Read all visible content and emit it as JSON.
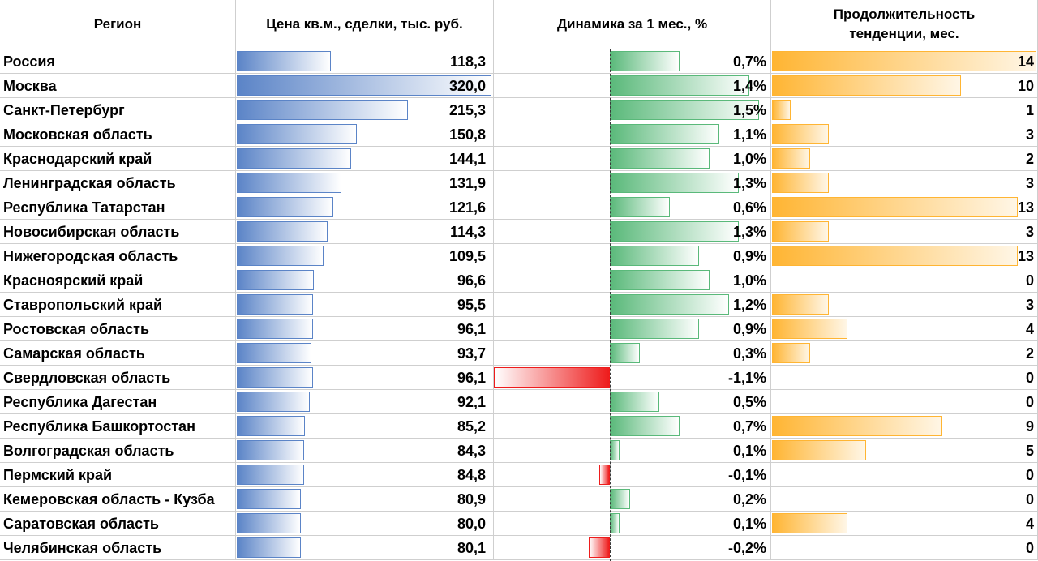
{
  "headers": {
    "region": "Регион",
    "price": "Цена кв.м., сделки, тыс. руб.",
    "dynamics": "Динамика за 1 мес., %",
    "duration": "Продолжительность тенденции, мес."
  },
  "colors": {
    "price_bar": "#5b84c7",
    "dyn_positive": "#5ab97a",
    "dyn_negative": "#ee1c1c",
    "duration_bar": "#ffb533"
  },
  "chart_data": {
    "type": "table",
    "columns": [
      "Регион",
      "Цена кв.м., сделки, тыс. руб.",
      "Динамика за 1 мес., %",
      "Продолжительность тенденции, мес."
    ],
    "rows": [
      {
        "region": "Россия",
        "price": "118,3",
        "price_v": 118.3,
        "dyn": "0,7%",
        "dyn_v": 0.7,
        "dur": "14",
        "dur_v": 14
      },
      {
        "region": "Москва",
        "price": "320,0",
        "price_v": 320.0,
        "dyn": "1,4%",
        "dyn_v": 1.4,
        "dur": "10",
        "dur_v": 10
      },
      {
        "region": "Санкт-Петербург",
        "price": "215,3",
        "price_v": 215.3,
        "dyn": "1,5%",
        "dyn_v": 1.5,
        "dur": "1",
        "dur_v": 1
      },
      {
        "region": "Московская область",
        "price": "150,8",
        "price_v": 150.8,
        "dyn": "1,1%",
        "dyn_v": 1.1,
        "dur": "3",
        "dur_v": 3
      },
      {
        "region": "Краснодарский край",
        "price": "144,1",
        "price_v": 144.1,
        "dyn": "1,0%",
        "dyn_v": 1.0,
        "dur": "2",
        "dur_v": 2
      },
      {
        "region": "Ленинградская область",
        "price": "131,9",
        "price_v": 131.9,
        "dyn": "1,3%",
        "dyn_v": 1.3,
        "dur": "3",
        "dur_v": 3
      },
      {
        "region": "Республика Татарстан",
        "price": "121,6",
        "price_v": 121.6,
        "dyn": "0,6%",
        "dyn_v": 0.6,
        "dur": "13",
        "dur_v": 13
      },
      {
        "region": "Новосибирская область",
        "price": "114,3",
        "price_v": 114.3,
        "dyn": "1,3%",
        "dyn_v": 1.3,
        "dur": "3",
        "dur_v": 3
      },
      {
        "region": "Нижегородская область",
        "price": "109,5",
        "price_v": 109.5,
        "dyn": "0,9%",
        "dyn_v": 0.9,
        "dur": "13",
        "dur_v": 13
      },
      {
        "region": "Красноярский край",
        "price": "96,6",
        "price_v": 96.6,
        "dyn": "1,0%",
        "dyn_v": 1.0,
        "dur": "0",
        "dur_v": 0
      },
      {
        "region": "Ставропольский край",
        "price": "95,5",
        "price_v": 95.5,
        "dyn": "1,2%",
        "dyn_v": 1.2,
        "dur": "3",
        "dur_v": 3
      },
      {
        "region": "Ростовская область",
        "price": "96,1",
        "price_v": 96.1,
        "dyn": "0,9%",
        "dyn_v": 0.9,
        "dur": "4",
        "dur_v": 4
      },
      {
        "region": "Самарская область",
        "price": "93,7",
        "price_v": 93.7,
        "dyn": "0,3%",
        "dyn_v": 0.3,
        "dur": "2",
        "dur_v": 2
      },
      {
        "region": "Свердловская область",
        "price": "96,1",
        "price_v": 96.1,
        "dyn": "-1,1%",
        "dyn_v": -1.1,
        "dur": "0",
        "dur_v": 0
      },
      {
        "region": "Республика Дагестан",
        "price": "92,1",
        "price_v": 92.1,
        "dyn": "0,5%",
        "dyn_v": 0.5,
        "dur": "0",
        "dur_v": 0
      },
      {
        "region": "Республика Башкортостан",
        "price": "85,2",
        "price_v": 85.2,
        "dyn": "0,7%",
        "dyn_v": 0.7,
        "dur": "9",
        "dur_v": 9
      },
      {
        "region": "Волгоградская область",
        "price": "84,3",
        "price_v": 84.3,
        "dyn": "0,1%",
        "dyn_v": 0.1,
        "dur": "5",
        "dur_v": 5
      },
      {
        "region": "Пермский край",
        "price": "84,8",
        "price_v": 84.8,
        "dyn": "-0,1%",
        "dyn_v": -0.1,
        "dur": "0",
        "dur_v": 0
      },
      {
        "region": "Кемеровская область - Кузба",
        "price": "80,9",
        "price_v": 80.9,
        "dyn": "0,2%",
        "dyn_v": 0.2,
        "dur": "0",
        "dur_v": 0
      },
      {
        "region": "Саратовская область",
        "price": "80,0",
        "price_v": 80.0,
        "dyn": "0,1%",
        "dyn_v": 0.1,
        "dur": "4",
        "dur_v": 4
      },
      {
        "region": "Челябинская область",
        "price": "80,1",
        "price_v": 80.1,
        "dyn": "-0,2%",
        "dyn_v": -0.2,
        "dur": "0",
        "dur_v": 0
      }
    ],
    "price_max": 320.0,
    "dyn_range": [
      -1.1,
      1.5
    ],
    "duration_max": 14
  }
}
